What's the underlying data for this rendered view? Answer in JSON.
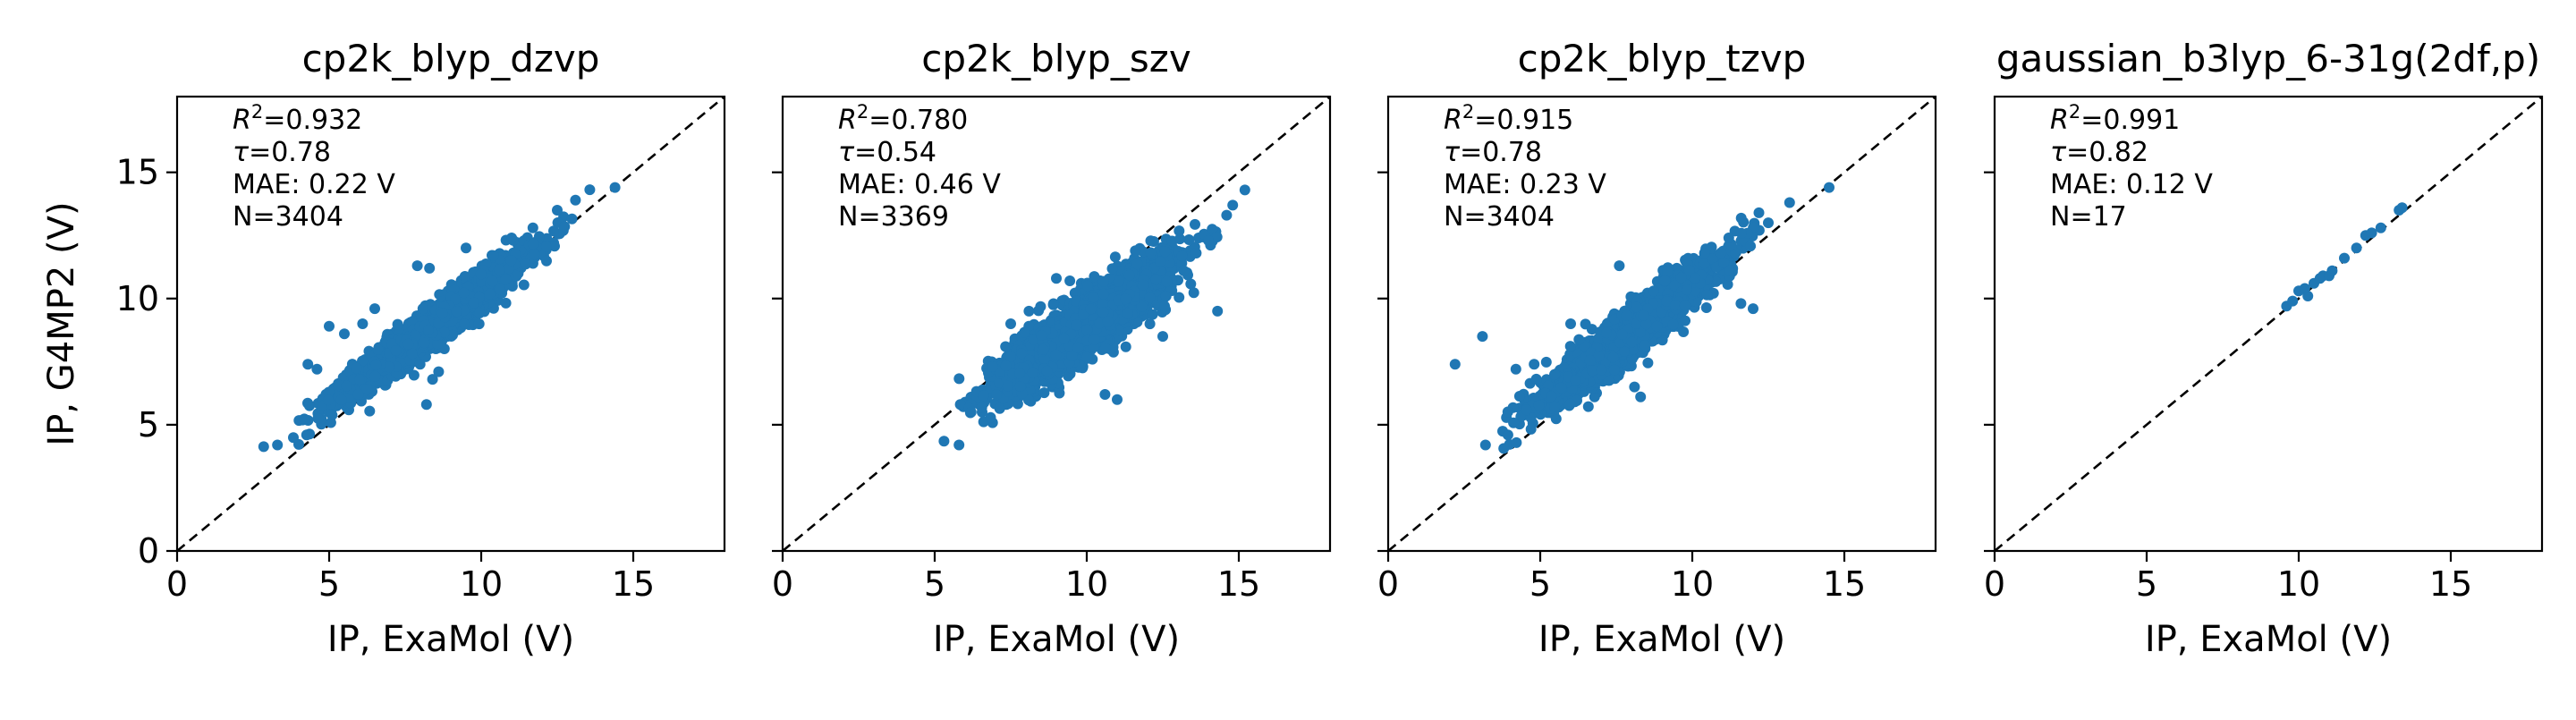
{
  "chart_data": [
    {
      "type": "scatter",
      "title": "cp2k_blyp_dzvp",
      "xlabel": "IP, ExaMol (V)",
      "ylabel": "IP, G4MP2 (V)",
      "xlim": [
        0,
        18
      ],
      "ylim": [
        0,
        18
      ],
      "xticks": [
        0,
        5,
        10,
        15
      ],
      "yticks": [
        0,
        5,
        10,
        15
      ],
      "diagonal": "y = x dashed black line",
      "point_color": "#1f77b4",
      "stats": {
        "r2": "0.932",
        "tau": "0.78",
        "mae": "MAE: 0.22 V",
        "n": "N=3404"
      },
      "cloud": {
        "n_points": 3404,
        "x_mean": 8.5,
        "y_mean": 9.0,
        "x_sd": 1.4,
        "y_sd": 1.3,
        "corr": 0.96
      },
      "outliers": [
        [
          3.3,
          4.2
        ],
        [
          4.3,
          7.4
        ],
        [
          4.6,
          7.2
        ],
        [
          5.0,
          8.9
        ],
        [
          5.5,
          8.6
        ],
        [
          6.1,
          9.0
        ],
        [
          6.5,
          9.6
        ],
        [
          7.6,
          8.2
        ],
        [
          7.9,
          11.3
        ],
        [
          8.3,
          11.2
        ],
        [
          8.4,
          6.8
        ],
        [
          8.6,
          7.1
        ],
        [
          8.2,
          5.8
        ],
        [
          9.5,
          12.0
        ],
        [
          10.4,
          11.7
        ],
        [
          11.0,
          12.4
        ],
        [
          11.7,
          12.8
        ],
        [
          12.5,
          13.5
        ],
        [
          13.1,
          13.9
        ],
        [
          14.4,
          14.4
        ]
      ]
    },
    {
      "type": "scatter",
      "title": "cp2k_blyp_szv",
      "xlabel": "IP, ExaMol (V)",
      "ylabel": "",
      "xlim": [
        0,
        18
      ],
      "ylim": [
        0,
        18
      ],
      "xticks": [
        0,
        5,
        10,
        15
      ],
      "yticks": [
        0,
        5,
        10,
        15
      ],
      "diagonal": "y = x dashed black line",
      "point_color": "#1f77b4",
      "stats": {
        "r2": "0.780",
        "tau": "0.54",
        "mae": "MAE: 0.46 V",
        "n": "N=3369"
      },
      "cloud": {
        "n_points": 3369,
        "x_mean": 10.0,
        "y_mean": 9.0,
        "x_sd": 1.3,
        "y_sd": 1.2,
        "corr": 0.88
      },
      "outliers": [
        [
          5.8,
          4.2
        ],
        [
          6.2,
          5.5
        ],
        [
          6.9,
          7.3
        ],
        [
          7.5,
          9.0
        ],
        [
          8.1,
          9.5
        ],
        [
          9.0,
          10.8
        ],
        [
          10.6,
          6.2
        ],
        [
          11.0,
          6.0
        ],
        [
          12.5,
          8.5
        ],
        [
          13.6,
          11.8
        ],
        [
          14.0,
          12.3
        ],
        [
          14.3,
          9.5
        ],
        [
          14.6,
          13.3
        ],
        [
          15.2,
          14.3
        ],
        [
          14.8,
          13.7
        ]
      ]
    },
    {
      "type": "scatter",
      "title": "cp2k_blyp_tzvp",
      "xlabel": "IP, ExaMol (V)",
      "ylabel": "",
      "xlim": [
        0,
        18
      ],
      "ylim": [
        0,
        18
      ],
      "xticks": [
        0,
        5,
        10,
        15
      ],
      "yticks": [
        0,
        5,
        10,
        15
      ],
      "diagonal": "y = x dashed black line",
      "point_color": "#1f77b4",
      "stats": {
        "r2": "0.915",
        "tau": "0.78",
        "mae": "MAE: 0.23 V",
        "n": "N=3404"
      },
      "cloud": {
        "n_points": 3404,
        "x_mean": 8.0,
        "y_mean": 8.7,
        "x_sd": 1.3,
        "y_sd": 1.3,
        "corr": 0.94
      },
      "outliers": [
        [
          2.2,
          7.4
        ],
        [
          3.1,
          8.5
        ],
        [
          3.2,
          4.2
        ],
        [
          4.2,
          7.2
        ],
        [
          4.8,
          7.4
        ],
        [
          6.0,
          9.0
        ],
        [
          7.6,
          11.3
        ],
        [
          8.1,
          6.5
        ],
        [
          8.3,
          6.1
        ],
        [
          10.4,
          11.8
        ],
        [
          11.2,
          12.4
        ],
        [
          11.6,
          9.8
        ],
        [
          12.0,
          9.6
        ],
        [
          12.5,
          13.0
        ],
        [
          13.2,
          13.8
        ],
        [
          14.5,
          14.4
        ]
      ]
    },
    {
      "type": "scatter",
      "title": "gaussian_b3lyp_6-31g(2df,p)",
      "xlabel": "IP, ExaMol (V)",
      "ylabel": "",
      "xlim": [
        0,
        18
      ],
      "ylim": [
        0,
        18
      ],
      "xticks": [
        0,
        5,
        10,
        15
      ],
      "yticks": [
        0,
        5,
        10,
        15
      ],
      "diagonal": "y = x dashed black line",
      "point_color": "#1f77b4",
      "stats": {
        "r2": "0.991",
        "tau": "0.82",
        "mae": "MAE: 0.12 V",
        "n": "N=17"
      },
      "points": [
        [
          9.6,
          9.7
        ],
        [
          9.8,
          9.9
        ],
        [
          10.0,
          10.3
        ],
        [
          10.2,
          10.4
        ],
        [
          10.3,
          10.1
        ],
        [
          10.5,
          10.6
        ],
        [
          10.7,
          10.8
        ],
        [
          10.8,
          10.9
        ],
        [
          11.0,
          10.9
        ],
        [
          11.1,
          11.1
        ],
        [
          11.5,
          11.6
        ],
        [
          11.9,
          12.0
        ],
        [
          12.2,
          12.5
        ],
        [
          12.4,
          12.6
        ],
        [
          12.7,
          12.8
        ],
        [
          13.3,
          13.5
        ],
        [
          13.4,
          13.6
        ]
      ]
    }
  ]
}
